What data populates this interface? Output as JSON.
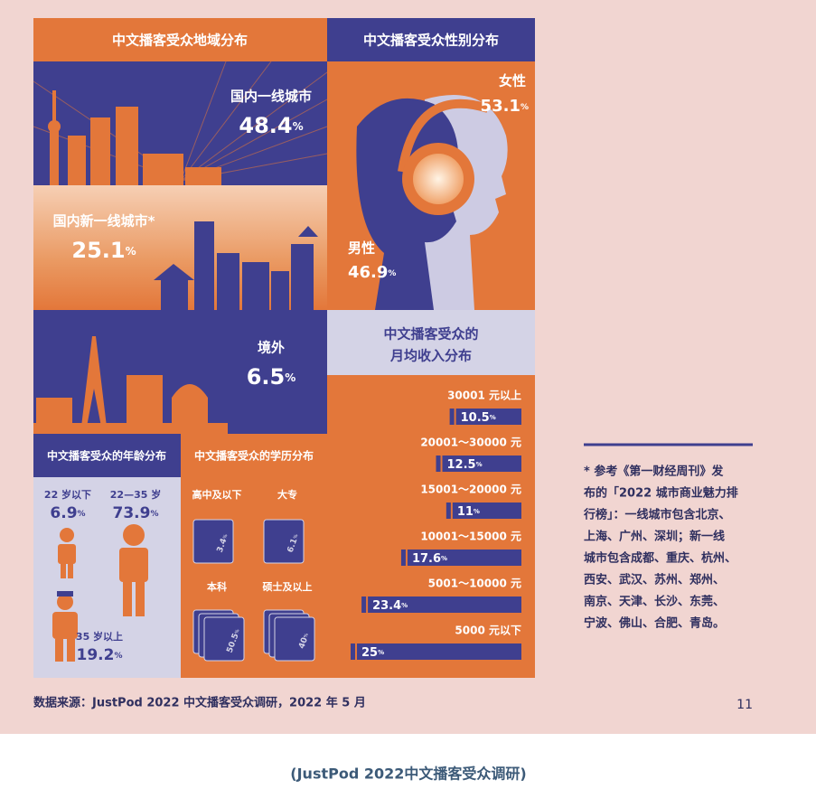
{
  "regions": {
    "title": "中文播客受众地域分布",
    "items": [
      {
        "label": "国内一线城市",
        "value": 48.4,
        "unit": "%"
      },
      {
        "label": "国内新一线城市*",
        "value": 25.1,
        "unit": "%"
      },
      {
        "label": "境外",
        "value": 6.5,
        "unit": "%"
      }
    ]
  },
  "gender": {
    "title": "中文播客受众性别分布",
    "items": [
      {
        "label": "女性",
        "value": 53.1,
        "unit": "%"
      },
      {
        "label": "男性",
        "value": 46.9,
        "unit": "%"
      }
    ]
  },
  "income": {
    "title_lines": [
      "中文播客受众的",
      "月均收入分布"
    ],
    "items": [
      {
        "label": "30001 元以上",
        "value": 10.5,
        "unit": "%"
      },
      {
        "label": "20001～30000 元",
        "value": 12.5,
        "unit": "%"
      },
      {
        "label": "15001～20000 元",
        "value": 11.0,
        "unit": "%"
      },
      {
        "label": "10001～15000 元",
        "value": 17.6,
        "unit": "%"
      },
      {
        "label": "5001～10000 元",
        "value": 23.4,
        "unit": "%"
      },
      {
        "label": "5000 元以下",
        "value": 25.0,
        "unit": "%"
      }
    ]
  },
  "age": {
    "title": "中文播客受众的年龄分布",
    "items": [
      {
        "label": "22 岁以下",
        "value": 6.9,
        "unit": "%"
      },
      {
        "label": "22—35 岁",
        "value": 73.9,
        "unit": "%"
      },
      {
        "label": "35 岁以上",
        "value": 19.2,
        "unit": "%"
      }
    ]
  },
  "education": {
    "title": "中文播客受众的学历分布",
    "items": [
      {
        "label": "高中及以下",
        "value": 3.4,
        "unit": "%"
      },
      {
        "label": "大专",
        "value": 6.1,
        "unit": "%"
      },
      {
        "label": "本科",
        "value": 50.5,
        "unit": "%"
      },
      {
        "label": "硕士及以上",
        "value": 40.0,
        "unit": "%"
      }
    ]
  },
  "note": [
    "* 参考《第一财经周刊》发",
    "布的「2022 城市商业魅力排",
    "行榜」：一线城市包含北京、",
    "上海、广州、深圳；新一线",
    "城市包含成都、重庆、杭州、",
    "西安、武汉、苏州、郑州、",
    "南京、天津、长沙、东莞、",
    "宁波、佛山、合肥、青岛。"
  ],
  "source": "数据来源：JustPod 2022 中文播客受众调研，2022 年 5 月",
  "page_number": "11",
  "caption": "(JustPod 2022中文播客受众调研)"
}
